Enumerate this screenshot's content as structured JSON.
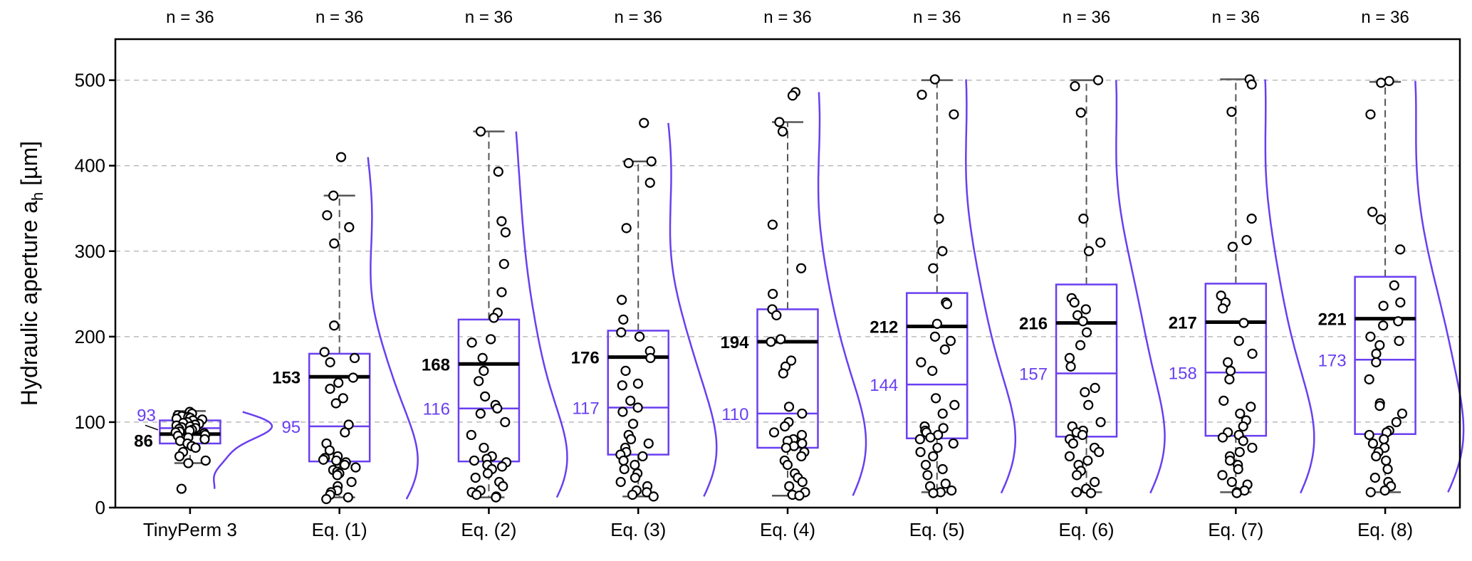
{
  "chart_data": {
    "type": "box",
    "title": "",
    "xlabel": "",
    "ylabel": "Hydraulic aperture a",
    "ylabel_sub": "h",
    "ylabel_unit": " [µm]",
    "ylim": [
      0,
      548
    ],
    "yticks": [
      0,
      100,
      200,
      300,
      400,
      500
    ],
    "grid": "horizontal dashed",
    "colors": {
      "box": "#6a3ff0",
      "mean": "#000000",
      "points": "#000000",
      "whisker": "#555555",
      "grid": "#bbbbbb"
    },
    "groups": [
      {
        "label": "TinyPerm 3",
        "n_label": "n = 36",
        "q1": 75,
        "q3": 102,
        "median": 93,
        "mean": 86,
        "whisker_low": 52,
        "whisker_high": 113,
        "median_label": "93",
        "mean_label": "86",
        "points": [
          112,
          110,
          108,
          107,
          106,
          105,
          104,
          103,
          102,
          100,
          99,
          98,
          97,
          96,
          95,
          94,
          93,
          92,
          91,
          90,
          89,
          88,
          87,
          85,
          84,
          82,
          80,
          78,
          75,
          72,
          70,
          65,
          60,
          55,
          52,
          22
        ]
      },
      {
        "label": "Eq. (1)",
        "n_label": "n = 36",
        "q1": 54,
        "q3": 180,
        "median": 95,
        "mean": 153,
        "whisker_low": 12,
        "whisker_high": 365,
        "median_label": "95",
        "mean_label": "153",
        "points": [
          410,
          365,
          342,
          328,
          309,
          213,
          182,
          175,
          170,
          152,
          146,
          139,
          128,
          122,
          97,
          88,
          75,
          67,
          60,
          58,
          56,
          55,
          53,
          50,
          47,
          44,
          42,
          40,
          38,
          30,
          25,
          20,
          18,
          15,
          12,
          10
        ]
      },
      {
        "label": "Eq. (2)",
        "n_label": "n = 36",
        "q1": 54,
        "q3": 220,
        "median": 116,
        "mean": 168,
        "whisker_low": 12,
        "whisker_high": 440,
        "median_label": "116",
        "mean_label": "168",
        "points": [
          440,
          393,
          335,
          322,
          285,
          252,
          228,
          222,
          197,
          193,
          175,
          160,
          148,
          130,
          120,
          116,
          110,
          100,
          85,
          70,
          60,
          57,
          55,
          53,
          50,
          48,
          45,
          40,
          35,
          30,
          25,
          20,
          18,
          15,
          13,
          12
        ]
      },
      {
        "label": "Eq. (3)",
        "n_label": "n = 36",
        "q1": 62,
        "q3": 207,
        "median": 117,
        "mean": 176,
        "whisker_low": 13,
        "whisker_high": 405,
        "median_label": "117",
        "mean_label": "176",
        "points": [
          450,
          405,
          403,
          380,
          327,
          243,
          220,
          205,
          200,
          183,
          175,
          160,
          145,
          143,
          125,
          117,
          112,
          98,
          85,
          80,
          75,
          70,
          65,
          62,
          60,
          55,
          50,
          45,
          40,
          35,
          30,
          25,
          20,
          18,
          15,
          13
        ]
      },
      {
        "label": "Eq. (4)",
        "n_label": "n = 36",
        "q1": 70,
        "q3": 232,
        "median": 110,
        "mean": 194,
        "whisker_low": 14,
        "whisker_high": 451,
        "median_label": "110",
        "mean_label": "194",
        "points": [
          486,
          482,
          451,
          440,
          331,
          280,
          250,
          232,
          225,
          197,
          194,
          172,
          165,
          157,
          118,
          110,
          100,
          95,
          88,
          85,
          80,
          78,
          75,
          72,
          70,
          65,
          60,
          55,
          50,
          40,
          35,
          30,
          25,
          18,
          15,
          14
        ]
      },
      {
        "label": "Eq. (5)",
        "n_label": "n = 36",
        "q1": 81,
        "q3": 251,
        "median": 144,
        "mean": 212,
        "whisker_low": 18,
        "whisker_high": 500,
        "median_label": "144",
        "mean_label": "212",
        "points": [
          501,
          483,
          460,
          338,
          300,
          280,
          240,
          238,
          215,
          200,
          195,
          185,
          170,
          160,
          128,
          120,
          110,
          95,
          93,
          90,
          88,
          85,
          82,
          80,
          75,
          70,
          65,
          60,
          50,
          45,
          38,
          28,
          25,
          20,
          18,
          17
        ]
      },
      {
        "label": "Eq. (6)",
        "n_label": "n = 36",
        "q1": 83,
        "q3": 261,
        "median": 157,
        "mean": 216,
        "whisker_low": 18,
        "whisker_high": 500,
        "median_label": "157",
        "mean_label": "216",
        "points": [
          500,
          493,
          462,
          338,
          310,
          300,
          245,
          240,
          232,
          225,
          218,
          205,
          190,
          175,
          165,
          140,
          135,
          120,
          100,
          95,
          90,
          88,
          85,
          80,
          75,
          70,
          65,
          60,
          55,
          50,
          43,
          38,
          30,
          22,
          18,
          17
        ]
      },
      {
        "label": "Eq. (7)",
        "n_label": "n = 36",
        "q1": 84,
        "q3": 262,
        "median": 158,
        "mean": 217,
        "whisker_low": 18,
        "whisker_high": 501,
        "median_label": "158",
        "mean_label": "217",
        "points": [
          501,
          495,
          463,
          338,
          313,
          305,
          248,
          240,
          233,
          216,
          195,
          180,
          170,
          160,
          150,
          125,
          118,
          110,
          102,
          95,
          88,
          85,
          82,
          78,
          70,
          65,
          60,
          55,
          50,
          45,
          38,
          30,
          27,
          20,
          18,
          17
        ]
      },
      {
        "label": "Eq. (8)",
        "n_label": "n = 36",
        "q1": 86,
        "q3": 270,
        "median": 173,
        "mean": 221,
        "whisker_low": 18,
        "whisker_high": 498,
        "median_label": "173",
        "mean_label": "221",
        "points": [
          499,
          497,
          460,
          346,
          337,
          302,
          260,
          240,
          236,
          218,
          213,
          200,
          195,
          190,
          180,
          170,
          150,
          122,
          119,
          110,
          100,
          90,
          88,
          85,
          80,
          75,
          70,
          65,
          60,
          55,
          45,
          35,
          30,
          25,
          20,
          18
        ]
      }
    ]
  }
}
